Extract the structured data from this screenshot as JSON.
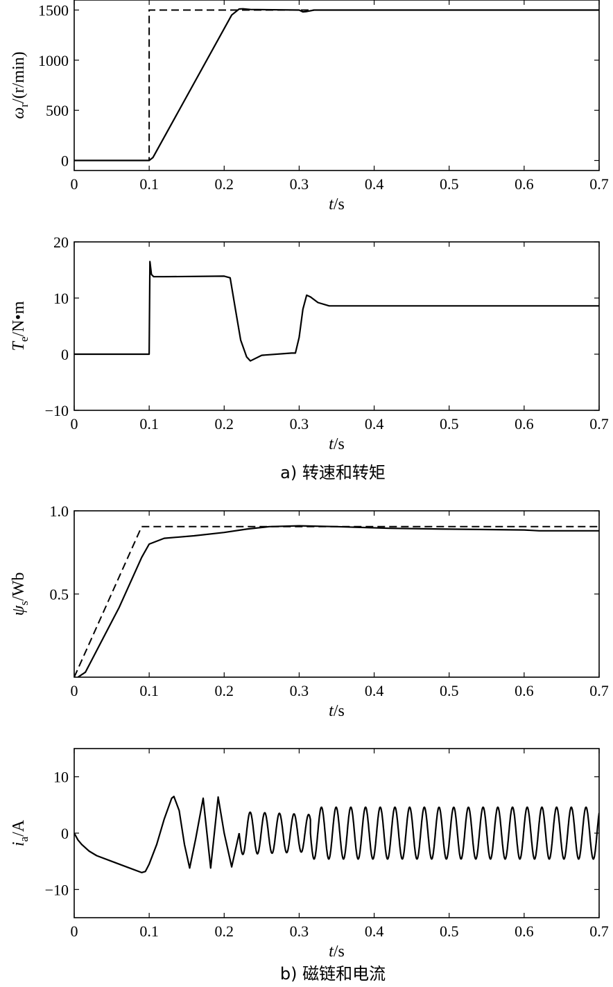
{
  "chart_data": [
    {
      "type": "line",
      "panel": "speed",
      "ylabel_sym": "ω",
      "ylabel_sub": "r",
      "ylabel_unit": "/(r/min)",
      "xlabel_sym": "t",
      "xlabel_unit": "/s",
      "xlim": [
        0,
        0.7
      ],
      "ylim": [
        -100,
        1600
      ],
      "xticks": [
        0,
        0.1,
        0.2,
        0.3,
        0.4,
        0.5,
        0.6,
        0.7
      ],
      "yticks": [
        0,
        500,
        1000,
        1500
      ],
      "series": [
        {
          "style": "solid",
          "x": [
            0,
            0.1,
            0.105,
            0.21,
            0.22,
            0.225,
            0.235,
            0.3,
            0.305,
            0.31,
            0.32,
            0.7
          ],
          "y": [
            0,
            0,
            30,
            1450,
            1510,
            1512,
            1505,
            1500,
            1482,
            1485,
            1500,
            1500
          ]
        },
        {
          "style": "dashed",
          "x": [
            0,
            0.1,
            0.1,
            0.7
          ],
          "y": [
            0,
            0,
            1500,
            1500
          ]
        }
      ]
    },
    {
      "type": "line",
      "panel": "torque",
      "ylabel_sym": "T",
      "ylabel_sub": "e",
      "ylabel_unit": "/N•m",
      "xlabel_sym": "t",
      "xlabel_unit": "/s",
      "xlim": [
        0,
        0.7
      ],
      "ylim": [
        -10,
        20
      ],
      "xticks": [
        0,
        0.1,
        0.2,
        0.3,
        0.4,
        0.5,
        0.6,
        0.7
      ],
      "yticks": [
        -10,
        0,
        10,
        20
      ],
      "series": [
        {
          "style": "solid",
          "x": [
            0,
            0.1,
            0.101,
            0.103,
            0.106,
            0.12,
            0.2,
            0.208,
            0.215,
            0.222,
            0.23,
            0.235,
            0.25,
            0.29,
            0.295,
            0.3,
            0.305,
            0.31,
            0.315,
            0.325,
            0.34,
            0.7
          ],
          "y": [
            0,
            0,
            16.5,
            14.2,
            13.8,
            13.8,
            13.9,
            13.6,
            8,
            2.5,
            -0.5,
            -1.2,
            -0.2,
            0.2,
            0.2,
            3,
            8,
            10.5,
            10.2,
            9.2,
            8.6,
            8.6
          ]
        },
        {
          "style": "dashed",
          "x": [
            0,
            0.1
          ],
          "y": [
            0,
            0
          ]
        }
      ]
    },
    {
      "type": "line",
      "panel": "flux",
      "ylabel_sym": "ψ",
      "ylabel_sub": "s",
      "ylabel_unit": "/Wb",
      "xlabel_sym": "t",
      "xlabel_unit": "/s",
      "xlim": [
        0,
        0.7
      ],
      "ylim": [
        0,
        1
      ],
      "xticks": [
        0,
        0.1,
        0.2,
        0.3,
        0.4,
        0.5,
        0.6,
        0.7
      ],
      "yticks": [
        0.5,
        1.0
      ],
      "ytick_labels": [
        "0.5",
        "1.0"
      ],
      "series": [
        {
          "style": "solid",
          "x": [
            0.005,
            0.015,
            0.03,
            0.06,
            0.09,
            0.1,
            0.12,
            0.16,
            0.2,
            0.23,
            0.26,
            0.3,
            0.35,
            0.42,
            0.5,
            0.6,
            0.62,
            0.7
          ],
          "y": [
            0.0,
            0.03,
            0.16,
            0.42,
            0.72,
            0.8,
            0.835,
            0.85,
            0.87,
            0.89,
            0.905,
            0.91,
            0.905,
            0.895,
            0.89,
            0.885,
            0.88,
            0.88
          ]
        },
        {
          "style": "dashed",
          "x": [
            0,
            0.09,
            0.7
          ],
          "y": [
            0,
            0.905,
            0.905
          ]
        }
      ]
    },
    {
      "type": "line",
      "panel": "current",
      "ylabel_sym": "i",
      "ylabel_sub": "a",
      "ylabel_unit": "/A",
      "xlabel_sym": "t",
      "xlabel_unit": "/s",
      "xlim": [
        0,
        0.7
      ],
      "ylim": [
        -15,
        15
      ],
      "xticks": [
        0,
        0.1,
        0.2,
        0.3,
        0.4,
        0.5,
        0.6,
        0.7
      ],
      "yticks": [
        -10,
        0,
        10
      ],
      "series": [
        {
          "style": "solid",
          "x": [
            0,
            0.005,
            0.01,
            0.02,
            0.03,
            0.05,
            0.07,
            0.09,
            0.095,
            0.1,
            0.11,
            0.12,
            0.13,
            0.133,
            0.14,
            0.147,
            0.154,
            0.162,
            0.172,
            0.182,
            0.192,
            0.2,
            0.21,
            0.22
          ],
          "y": [
            0,
            -1.2,
            -2,
            -3.2,
            -4,
            -5,
            -6,
            -7,
            -6.8,
            -5.5,
            -2,
            2.5,
            6.2,
            6.5,
            4,
            -2,
            -6.2,
            -1,
            6.2,
            -6.2,
            6.4,
            0,
            -6,
            0
          ]
        },
        {
          "style": "sine",
          "x_start": 0.22,
          "x_end": 0.7,
          "segments": [
            {
              "x0": 0.22,
              "x1": 0.315,
              "period": 0.0195,
              "amp_start": 3.8,
              "amp_end": 3.3
            },
            {
              "x0": 0.315,
              "x1": 0.7,
              "period": 0.0196,
              "amp_start": 4.6,
              "amp_end": 4.6
            }
          ]
        }
      ]
    }
  ],
  "captions": [
    "a) 转速和转矩",
    "b) 磁链和电流"
  ]
}
